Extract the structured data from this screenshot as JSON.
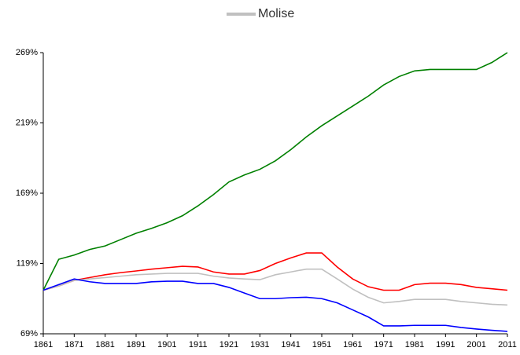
{
  "chart_data": {
    "type": "line",
    "x": [
      1861,
      1866,
      1871,
      1876,
      1881,
      1886,
      1891,
      1896,
      1901,
      1906,
      1911,
      1916,
      1921,
      1926,
      1931,
      1936,
      1941,
      1946,
      1951,
      1956,
      1961,
      1966,
      1971,
      1976,
      1981,
      1986,
      1991,
      1996,
      2001,
      2006,
      2011
    ],
    "series": [
      {
        "color": "#008000",
        "values": [
          100,
          122,
          125,
          129,
          131.5,
          136,
          140.5,
          144,
          148,
          153,
          160,
          168,
          177,
          182,
          186,
          192,
          200,
          209,
          217,
          224,
          231,
          238,
          246,
          252,
          256,
          257,
          257,
          257,
          257,
          262,
          269
        ]
      },
      {
        "color": "#ff0000",
        "values": [
          100,
          103,
          107,
          109,
          111,
          112.5,
          113.7,
          115,
          116,
          117,
          116.5,
          113,
          111.5,
          111.5,
          114,
          119,
          123,
          126.5,
          126.5,
          116.5,
          108,
          102.5,
          100,
          100,
          104,
          105,
          105,
          104,
          102,
          101,
          100
        ]
      },
      {
        "name": "Molise",
        "color": "#c0c0c0",
        "values": [
          100,
          103,
          107,
          108,
          109,
          110,
          111,
          111.5,
          112,
          112,
          112,
          110,
          108.7,
          108,
          107.5,
          111,
          113,
          115,
          115,
          108,
          100.8,
          95,
          91,
          92,
          93.5,
          93.5,
          93.5,
          92,
          91,
          90,
          89.5
        ]
      },
      {
        "color": "#0000ff",
        "values": [
          100,
          104,
          108,
          106,
          104.8,
          104.8,
          104.8,
          106,
          106.4,
          106.4,
          104.8,
          104.8,
          102,
          98,
          94,
          94,
          94.7,
          95,
          94,
          91,
          86,
          81,
          74.6,
          74.6,
          75,
          75,
          75,
          73.5,
          72.4,
          71.5,
          70.7
        ]
      }
    ],
    "xlim": [
      1861,
      2011
    ],
    "xticks": [
      1861,
      1871,
      1881,
      1891,
      1901,
      1911,
      1921,
      1931,
      1941,
      1951,
      1961,
      1971,
      1981,
      1991,
      2001,
      2011
    ],
    "ylim": [
      69,
      269
    ],
    "yticks": [
      {
        "value": 69,
        "label": "69%"
      },
      {
        "value": 119,
        "label": "119%"
      },
      {
        "value": 169,
        "label": "169%"
      },
      {
        "value": 219,
        "label": "219%"
      },
      {
        "value": 269,
        "label": "269%"
      }
    ],
    "grid": false,
    "legend": "top"
  }
}
